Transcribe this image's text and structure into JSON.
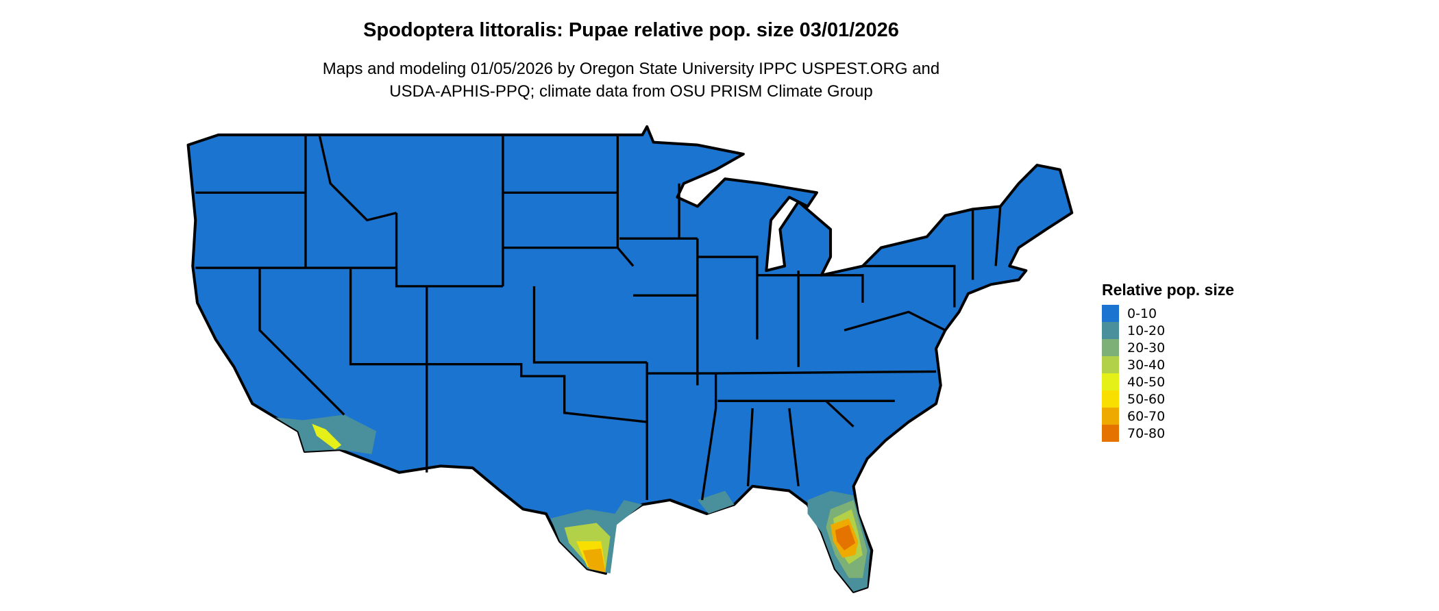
{
  "title": "Spodoptera littoralis: Pupae relative pop. size 03/01/2026",
  "subtitle_lines": [
    "Maps and modeling 01/05/2026 by Oregon State University IPPC USPEST.ORG and",
    "USDA-APHIS-PPQ; climate data from OSU PRISM Climate Group"
  ],
  "legend": {
    "title": "Relative pop. size",
    "items": [
      {
        "label": "0-10",
        "color": "#1a74d0"
      },
      {
        "label": "10-20",
        "color": "#4a8f9c"
      },
      {
        "label": "20-30",
        "color": "#7db077"
      },
      {
        "label": "30-40",
        "color": "#b2d048"
      },
      {
        "label": "40-50",
        "color": "#e5ef18"
      },
      {
        "label": "50-60",
        "color": "#f9df00"
      },
      {
        "label": "60-70",
        "color": "#efaa00"
      },
      {
        "label": "70-80",
        "color": "#e57300"
      }
    ]
  },
  "map": {
    "region": "Contiguous United States",
    "boundary_color": "#000000"
  }
}
